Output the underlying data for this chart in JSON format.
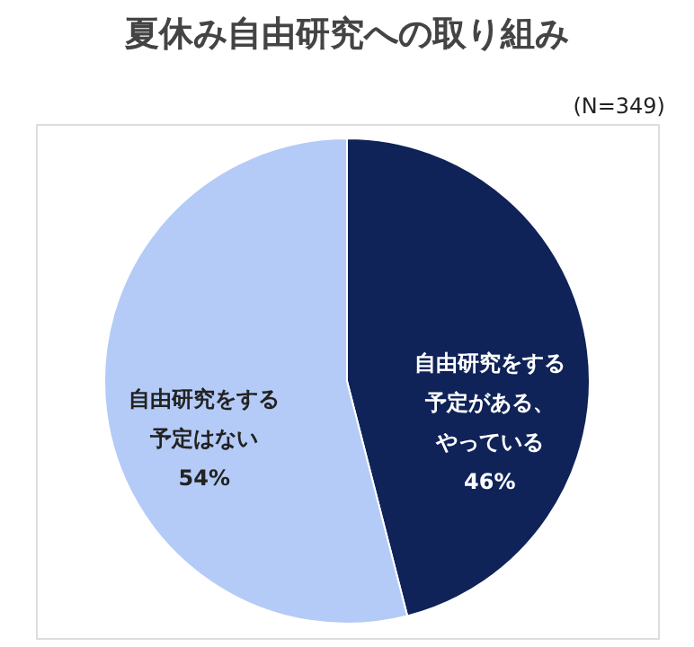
{
  "chart_data": {
    "type": "pie",
    "title": "夏休み自由研究への取り組み",
    "categories": [
      "自由研究をする予定がある、やっている",
      "自由研究をする予定はない"
    ],
    "values": [
      46,
      54
    ],
    "colors": [
      "#0f2358",
      "#b4cbf7"
    ],
    "value_labels": [
      "46%",
      "54%"
    ],
    "annotations": [
      "(N=349)"
    ],
    "legend": false
  }
}
